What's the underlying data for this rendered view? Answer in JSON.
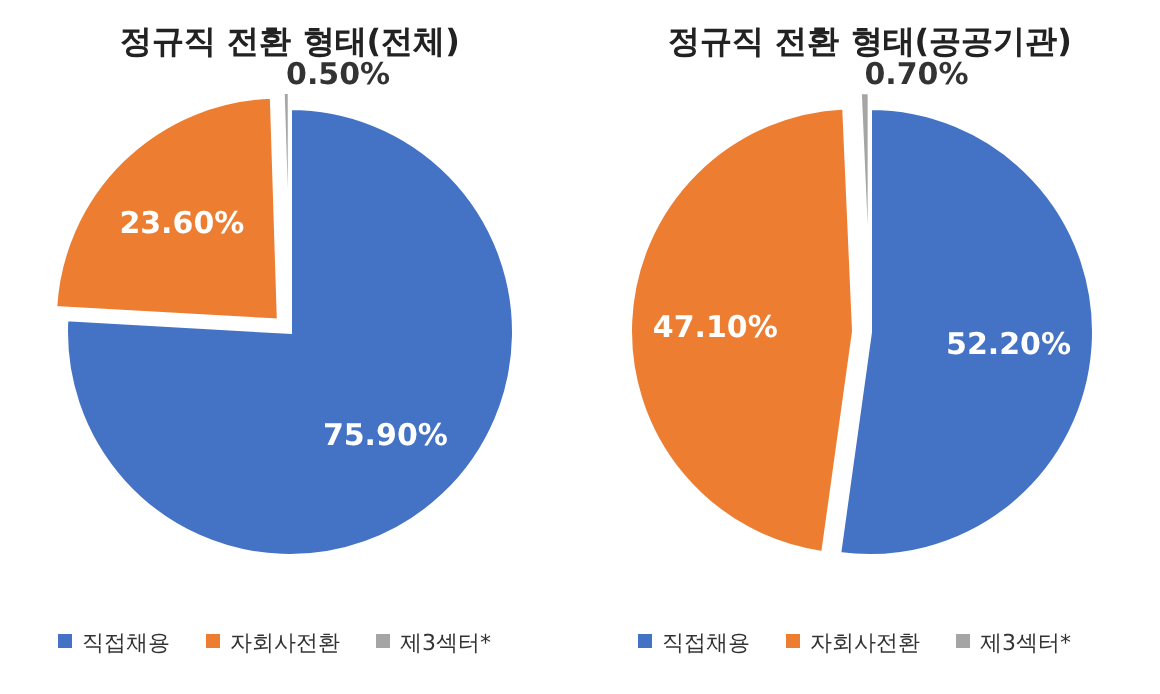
{
  "chart_data": [
    {
      "type": "pie",
      "title": "정규직 전환 형태(전체)",
      "categories": [
        "직접채용",
        "자회사전환",
        "제3섹터*"
      ],
      "values": [
        75.9,
        23.6,
        0.5
      ],
      "colors": [
        "#4472c4",
        "#ed7d31",
        "#a5a5a5"
      ],
      "value_labels": [
        "75.90%",
        "23.60%",
        "0.50%"
      ],
      "legend": "bottom"
    },
    {
      "type": "pie",
      "title": "정규직 전환 형태(공공기관)",
      "categories": [
        "직접채용",
        "자회사전환",
        "제3섹터*"
      ],
      "values": [
        52.2,
        47.1,
        0.7
      ],
      "colors": [
        "#4472c4",
        "#ed7d31",
        "#a5a5a5"
      ],
      "value_labels": [
        "52.20%",
        "47.10%",
        "0.70%"
      ],
      "legend": "bottom"
    }
  ]
}
